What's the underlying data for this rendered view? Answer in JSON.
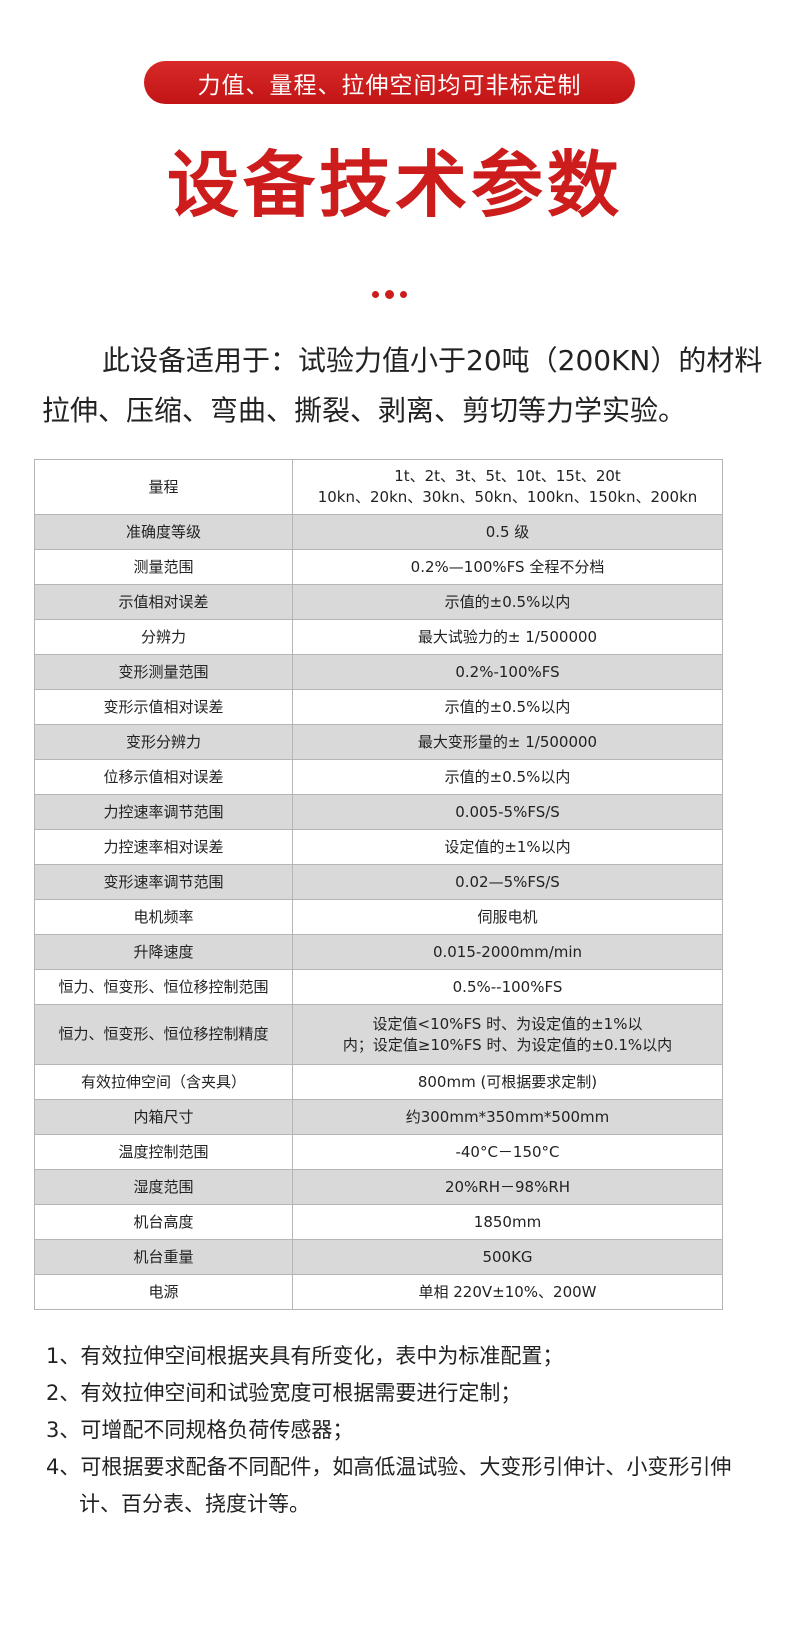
{
  "banner": "力值、量程、拉伸空间均可非标定制",
  "title": "设备技术参数",
  "intro": {
    "line1": "此设备适用于：试验力值小于20吨（200KN）的材料",
    "line2": "拉伸、压缩、弯曲、撕裂、剥离、剪切等力学实验。"
  },
  "colors": {
    "accent": "#cc1c1c",
    "row_alt": "#d9d9d9"
  },
  "table": [
    {
      "k": "量程",
      "v": "1t、2t、3t、5t、10t、15t、20t",
      "v2": "10kn、20kn、30kn、50kn、100kn、150kn、200kn"
    },
    {
      "k": "准确度等级",
      "v": "0.5 级"
    },
    {
      "k": "测量范围",
      "v": "0.2%—100%FS 全程不分档"
    },
    {
      "k": "示值相对误差",
      "v": "示值的±0.5%以内"
    },
    {
      "k": "分辨力",
      "v": "最大试验力的± 1/500000"
    },
    {
      "k": "变形测量范围",
      "v": "0.2%-100%FS"
    },
    {
      "k": "变形示值相对误差",
      "v": "示值的±0.5%以内"
    },
    {
      "k": "变形分辨力",
      "v": "最大变形量的± 1/500000"
    },
    {
      "k": "位移示值相对误差",
      "v": "示值的±0.5%以内"
    },
    {
      "k": "力控速率调节范围",
      "v": "0.005-5%FS/S"
    },
    {
      "k": "力控速率相对误差",
      "v": "设定值的±1%以内"
    },
    {
      "k": "变形速率调节范围",
      "v": "0.02—5%FS/S"
    },
    {
      "k": "电机频率",
      "v": "伺服电机"
    },
    {
      "k": "升降速度",
      "v": "0.015-2000mm/min"
    },
    {
      "k": "恒力、恒变形、恒位移控制范围",
      "v": "0.5%--100%FS"
    },
    {
      "k": "恒力、恒变形、恒位移控制精度",
      "v": "设定值<10%FS 时、为设定值的±1%以",
      "v2": "内；设定值≥10%FS 时、为设定值的±0.1%以内"
    },
    {
      "k": "有效拉伸空间（含夹具）",
      "v": "800mm (可根据要求定制)"
    },
    {
      "k": "内箱尺寸",
      "v": "约300mm*350mm*500mm"
    },
    {
      "k": "温度控制范围",
      "v": "-40°C－150°C"
    },
    {
      "k": "湿度范围",
      "v": "20%RH－98%RH"
    },
    {
      "k": "机台高度",
      "v": "1850mm"
    },
    {
      "k": "机台重量",
      "v": "500KG"
    },
    {
      "k": "电源",
      "v": "单相 220V±10%、200W"
    }
  ],
  "notes": [
    "1、有效拉伸空间根据夹具有所变化，表中为标准配置；",
    "2、有效拉伸空间和试验宽度可根据需要进行定制；",
    "3、可增配不同规格负荷传感器；",
    "4、可根据要求配备不同配件，如高低温试验、大变形引伸计、小变形引伸计、百分表、挠度计等。"
  ]
}
